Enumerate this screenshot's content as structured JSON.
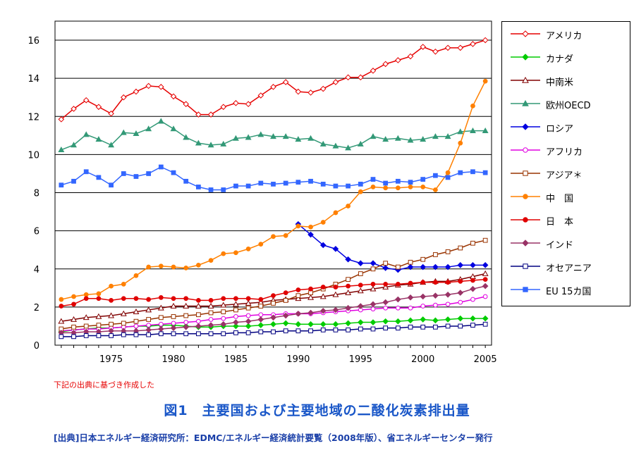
{
  "chart_data": {
    "type": "line",
    "title": "",
    "xlabel": "",
    "ylabel": "",
    "xlim": [
      1971,
      2005
    ],
    "ylim": [
      0,
      17
    ],
    "yticks": [
      0,
      2,
      4,
      6,
      8,
      10,
      12,
      14,
      16
    ],
    "xticks": [
      1975,
      1980,
      1985,
      1990,
      1995,
      2000,
      2005
    ],
    "grid": "horizontal",
    "legend_position": "right",
    "series": [
      {
        "name": "アメリカ",
        "color": "#e60000",
        "marker": "diamond-open",
        "x0": 1971,
        "values": [
          11.85,
          12.4,
          12.85,
          12.5,
          12.15,
          13.0,
          13.3,
          13.6,
          13.55,
          13.05,
          12.65,
          12.1,
          12.1,
          12.5,
          12.7,
          12.65,
          13.1,
          13.55,
          13.8,
          13.3,
          13.25,
          13.45,
          13.8,
          14.05,
          14.05,
          14.4,
          14.75,
          14.95,
          15.15,
          15.65,
          15.4,
          15.6,
          15.6,
          15.8,
          16.0
        ]
      },
      {
        "name": "カナダ",
        "color": "#00cc00",
        "marker": "diamond",
        "x0": 1971,
        "values": [
          0.7,
          0.8,
          0.85,
          0.9,
          0.9,
          0.95,
          1.0,
          1.0,
          1.05,
          1.05,
          1.0,
          0.95,
          0.95,
          1.0,
          1.0,
          1.0,
          1.05,
          1.1,
          1.15,
          1.1,
          1.1,
          1.1,
          1.1,
          1.15,
          1.2,
          1.2,
          1.25,
          1.25,
          1.3,
          1.35,
          1.3,
          1.35,
          1.4,
          1.4,
          1.4
        ]
      },
      {
        "name": "中南米",
        "color": "#800000",
        "marker": "triangle-open",
        "x0": 1971,
        "values": [
          1.25,
          1.35,
          1.45,
          1.5,
          1.55,
          1.65,
          1.75,
          1.85,
          1.95,
          2.05,
          2.05,
          2.05,
          2.05,
          2.1,
          2.15,
          2.2,
          2.25,
          2.35,
          2.4,
          2.45,
          2.5,
          2.55,
          2.65,
          2.75,
          2.85,
          2.95,
          3.05,
          3.15,
          3.2,
          3.3,
          3.35,
          3.35,
          3.45,
          3.6,
          3.75
        ]
      },
      {
        "name": "欧州OECD",
        "color": "#339977",
        "marker": "triangle",
        "x0": 1971,
        "values": [
          10.25,
          10.5,
          11.05,
          10.8,
          10.5,
          11.15,
          11.1,
          11.35,
          11.75,
          11.35,
          10.9,
          10.6,
          10.5,
          10.55,
          10.85,
          10.9,
          11.05,
          10.95,
          10.95,
          10.8,
          10.85,
          10.55,
          10.45,
          10.35,
          10.55,
          10.95,
          10.8,
          10.85,
          10.75,
          10.8,
          10.95,
          10.95,
          11.2,
          11.25,
          11.25
        ]
      },
      {
        "name": "ロシア",
        "color": "#0000e0",
        "marker": "diamond",
        "x0": 1990,
        "values": [
          6.35,
          5.8,
          5.25,
          5.05,
          4.5,
          4.3,
          4.3,
          4.05,
          3.95,
          4.1,
          4.1,
          4.1,
          4.1,
          4.2,
          4.2,
          4.2
        ]
      },
      {
        "name": "アフリカ",
        "color": "#e000e0",
        "marker": "circle-open",
        "x0": 1971,
        "values": [
          0.75,
          0.8,
          0.85,
          0.85,
          0.9,
          0.95,
          1.0,
          1.05,
          1.1,
          1.15,
          1.2,
          1.25,
          1.35,
          1.4,
          1.5,
          1.55,
          1.6,
          1.6,
          1.65,
          1.65,
          1.65,
          1.7,
          1.75,
          1.8,
          1.85,
          1.9,
          1.95,
          1.95,
          1.95,
          2.05,
          2.1,
          2.15,
          2.25,
          2.4,
          2.55
        ]
      },
      {
        "name": "アジア＊",
        "color": "#993300",
        "marker": "square-open",
        "x0": 1971,
        "values": [
          0.85,
          0.95,
          1.0,
          1.05,
          1.1,
          1.15,
          1.25,
          1.35,
          1.45,
          1.5,
          1.55,
          1.6,
          1.7,
          1.75,
          1.85,
          1.95,
          2.05,
          2.2,
          2.35,
          2.6,
          2.75,
          2.95,
          3.2,
          3.45,
          3.75,
          4.0,
          4.3,
          4.1,
          4.35,
          4.5,
          4.75,
          4.9,
          5.1,
          5.35,
          5.5
        ]
      },
      {
        "name": "中　国",
        "color": "#ff8000",
        "marker": "circle",
        "x0": 1971,
        "values": [
          2.4,
          2.55,
          2.65,
          2.7,
          3.1,
          3.2,
          3.65,
          4.1,
          4.15,
          4.1,
          4.05,
          4.2,
          4.45,
          4.8,
          4.85,
          5.05,
          5.3,
          5.7,
          5.75,
          6.25,
          6.2,
          6.45,
          6.95,
          7.3,
          8.05,
          8.3,
          8.25,
          8.25,
          8.3,
          8.3,
          8.15,
          9.05,
          10.6,
          12.55,
          13.85
        ]
      },
      {
        "name": "日　本",
        "color": "#e00000",
        "marker": "circle",
        "x0": 1971,
        "values": [
          2.05,
          2.15,
          2.45,
          2.45,
          2.35,
          2.45,
          2.45,
          2.4,
          2.5,
          2.45,
          2.45,
          2.35,
          2.35,
          2.45,
          2.45,
          2.45,
          2.4,
          2.6,
          2.75,
          2.9,
          2.95,
          3.05,
          3.05,
          3.1,
          3.15,
          3.2,
          3.2,
          3.2,
          3.25,
          3.3,
          3.3,
          3.3,
          3.35,
          3.4,
          3.45
        ]
      },
      {
        "name": "インド",
        "color": "#993366",
        "marker": "diamond",
        "x0": 1971,
        "values": [
          0.65,
          0.65,
          0.7,
          0.7,
          0.75,
          0.75,
          0.75,
          0.8,
          0.85,
          0.9,
          0.95,
          1.0,
          1.05,
          1.1,
          1.2,
          1.25,
          1.35,
          1.45,
          1.55,
          1.65,
          1.7,
          1.8,
          1.85,
          1.95,
          2.05,
          2.15,
          2.25,
          2.4,
          2.5,
          2.55,
          2.6,
          2.65,
          2.75,
          2.95,
          3.1
        ]
      },
      {
        "name": "オセアニア",
        "color": "#000080",
        "marker": "square-open",
        "x0": 1971,
        "values": [
          0.45,
          0.45,
          0.5,
          0.5,
          0.5,
          0.55,
          0.55,
          0.55,
          0.6,
          0.6,
          0.6,
          0.6,
          0.6,
          0.6,
          0.65,
          0.65,
          0.7,
          0.7,
          0.75,
          0.75,
          0.75,
          0.8,
          0.8,
          0.8,
          0.85,
          0.85,
          0.9,
          0.9,
          0.95,
          0.95,
          0.95,
          1.0,
          1.0,
          1.05,
          1.1
        ]
      },
      {
        "name": "EU 15カ国",
        "color": "#3366ff",
        "marker": "square",
        "x0": 1971,
        "values": [
          8.4,
          8.6,
          9.1,
          8.8,
          8.4,
          9.0,
          8.85,
          9.0,
          9.35,
          9.05,
          8.6,
          8.3,
          8.15,
          8.15,
          8.35,
          8.35,
          8.5,
          8.45,
          8.5,
          8.55,
          8.6,
          8.45,
          8.35,
          8.35,
          8.45,
          8.7,
          8.5,
          8.6,
          8.55,
          8.7,
          8.9,
          8.8,
          9.05,
          9.1,
          9.05
        ]
      }
    ]
  },
  "note": "下記の出典に基づき作成した",
  "figure_title": "図1　主要国および主要地域の二酸化炭素排出量",
  "citation": "[出典]日本エネルギー経済研究所：EDMC/エネルギー経済統計要覧（2008年版）、省エネルギーセンター発行"
}
